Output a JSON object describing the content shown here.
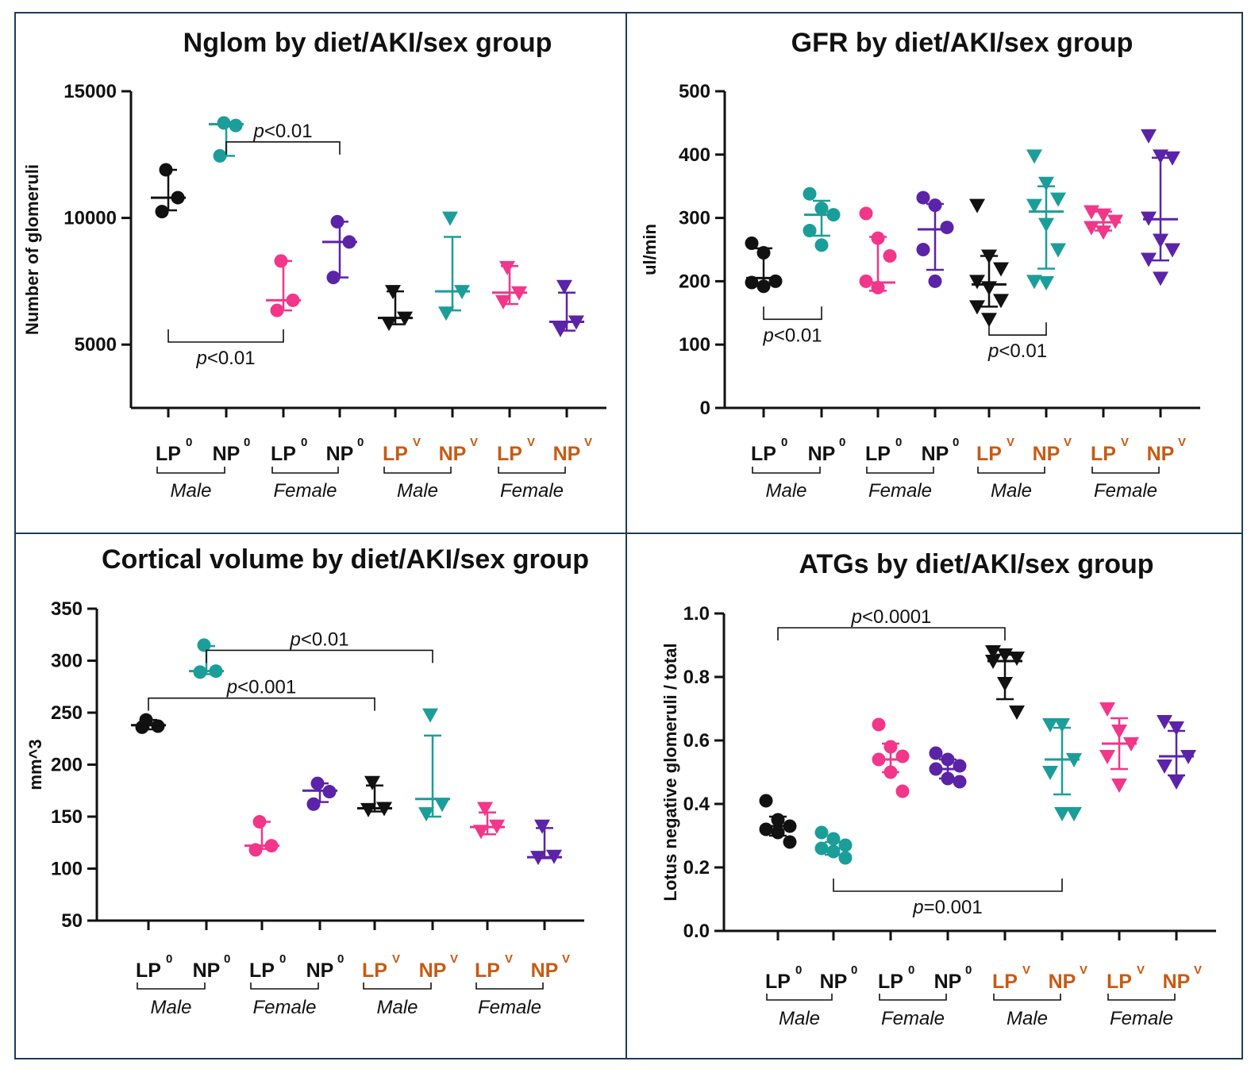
{
  "colors": {
    "black": "#111111",
    "teal": "#1b9e9a",
    "pink": "#f2368a",
    "purple": "#5b23a8",
    "orange": "#c85a12",
    "border": "#1f3a5a"
  },
  "chart_data": [
    {
      "type": "scatter",
      "title": "Nglom by diet/AKI/sex group",
      "xlabel": "",
      "ylabel": "Number of glomeruli",
      "ylim": [
        2500,
        15000
      ],
      "yticks": [
        "5000",
        "10000",
        "15000"
      ],
      "group_labels": [
        {
          "text": "LP",
          "sup": "0"
        },
        {
          "text": "NP",
          "sup": "0"
        },
        {
          "text": "LP",
          "sup": "0"
        },
        {
          "text": "NP",
          "sup": "0"
        },
        {
          "text": "LP",
          "sup": "V"
        },
        {
          "text": "NP",
          "sup": "V"
        },
        {
          "text": "LP",
          "sup": "V"
        },
        {
          "text": "NP",
          "sup": "V"
        }
      ],
      "sex_labels": [
        "Male",
        "Female",
        "Male",
        "Female"
      ],
      "groups": [
        {
          "marker": "circle",
          "color": "black",
          "mean": 10800,
          "err": [
            10300,
            11900
          ],
          "points": [
            11900,
            10800,
            10250
          ]
        },
        {
          "marker": "circle",
          "color": "teal",
          "mean": 13700,
          "err": [
            12450,
            13750
          ],
          "points": [
            13750,
            13650,
            12450
          ]
        },
        {
          "marker": "circle",
          "color": "pink",
          "mean": 6750,
          "err": [
            6350,
            8300
          ],
          "points": [
            8300,
            6750,
            6350
          ]
        },
        {
          "marker": "circle",
          "color": "purple",
          "mean": 9050,
          "err": [
            7650,
            9850
          ],
          "points": [
            9850,
            9050,
            7650
          ]
        },
        {
          "marker": "triangle",
          "color": "black",
          "mean": 6050,
          "err": [
            5800,
            7100
          ],
          "points": [
            7100,
            6050,
            5850
          ]
        },
        {
          "marker": "triangle",
          "color": "teal",
          "mean": 7100,
          "err": [
            6350,
            9250
          ],
          "points": [
            10000,
            7100,
            6250
          ]
        },
        {
          "marker": "triangle",
          "color": "pink",
          "mean": 7050,
          "err": [
            6600,
            8100
          ],
          "points": [
            8050,
            7050,
            6700
          ]
        },
        {
          "marker": "triangle",
          "color": "purple",
          "mean": 5900,
          "err": [
            5550,
            7050
          ],
          "points": [
            7300,
            5900,
            5600
          ]
        }
      ],
      "annotations": [
        {
          "text": "p<0.01",
          "from": 1,
          "to": 3,
          "bracket_y": 13000,
          "side": "above"
        },
        {
          "text": "p<0.01",
          "from": 0,
          "to": 2,
          "bracket_y": 5100,
          "side": "below"
        }
      ]
    },
    {
      "type": "scatter",
      "title": "GFR by diet/AKI/sex group",
      "xlabel": "",
      "ylabel": "ul/min",
      "ylim": [
        0,
        500
      ],
      "yticks": [
        "0",
        "100",
        "200",
        "300",
        "400",
        "500"
      ],
      "group_labels": [
        {
          "text": "LP",
          "sup": "0"
        },
        {
          "text": "NP",
          "sup": "0"
        },
        {
          "text": "LP",
          "sup": "0"
        },
        {
          "text": "NP",
          "sup": "0"
        },
        {
          "text": "LP",
          "sup": "V"
        },
        {
          "text": "NP",
          "sup": "V"
        },
        {
          "text": "LP",
          "sup": "V"
        },
        {
          "text": "NP",
          "sup": "V"
        }
      ],
      "sex_labels": [
        "Male",
        "Female",
        "Male",
        "Female"
      ],
      "groups": [
        {
          "marker": "circle",
          "color": "black",
          "mean": 205,
          "err": [
            195,
            252
          ],
          "points": [
            260,
            245,
            200,
            198,
            192
          ]
        },
        {
          "marker": "circle",
          "color": "teal",
          "mean": 305,
          "err": [
            272,
            327
          ],
          "points": [
            338,
            315,
            305,
            280,
            257
          ]
        },
        {
          "marker": "circle",
          "color": "pink",
          "mean": 198,
          "err": [
            185,
            270
          ],
          "points": [
            307,
            268,
            240,
            200,
            190
          ]
        },
        {
          "marker": "circle",
          "color": "purple",
          "mean": 282,
          "err": [
            218,
            322
          ],
          "points": [
            332,
            320,
            285,
            250,
            200
          ]
        },
        {
          "marker": "triangle",
          "color": "black",
          "mean": 195,
          "err": [
            160,
            240
          ],
          "points": [
            320,
            240,
            220,
            200,
            190,
            170,
            160,
            140
          ]
        },
        {
          "marker": "triangle",
          "color": "teal",
          "mean": 310,
          "err": [
            220,
            350
          ],
          "points": [
            398,
            355,
            330,
            320,
            290,
            250,
            200,
            198
          ]
        },
        {
          "marker": "triangle",
          "color": "pink",
          "mean": 293,
          "err": [
            280,
            310
          ],
          "points": [
            310,
            305,
            295,
            285,
            278
          ]
        },
        {
          "marker": "triangle",
          "color": "purple",
          "mean": 298,
          "err": [
            233,
            395
          ],
          "points": [
            430,
            398,
            395,
            300,
            265,
            250,
            235,
            205
          ]
        }
      ],
      "annotations": [
        {
          "text": "p<0.01",
          "from": 0,
          "to": 1,
          "bracket_y": 140,
          "side": "below"
        },
        {
          "text": "p<0.01",
          "from": 4,
          "to": 5,
          "bracket_y": 115,
          "side": "below"
        }
      ]
    },
    {
      "type": "scatter",
      "title": "Cortical volume by diet/AKI/sex group",
      "xlabel": "",
      "ylabel": "mm^3",
      "ylim": [
        50,
        350
      ],
      "yticks": [
        "50",
        "100",
        "150",
        "200",
        "250",
        "300",
        "350"
      ],
      "group_labels": [
        {
          "text": "LP",
          "sup": "0"
        },
        {
          "text": "NP",
          "sup": "0"
        },
        {
          "text": "LP",
          "sup": "0"
        },
        {
          "text": "NP",
          "sup": "0"
        },
        {
          "text": "LP",
          "sup": "V"
        },
        {
          "text": "NP",
          "sup": "V"
        },
        {
          "text": "LP",
          "sup": "V"
        },
        {
          "text": "NP",
          "sup": "V"
        }
      ],
      "sex_labels": [
        "Male",
        "Female",
        "Male",
        "Female"
      ],
      "groups": [
        {
          "marker": "circle",
          "color": "black",
          "mean": 238,
          "err": [
            234,
            243
          ],
          "points": [
            243,
            237,
            236
          ]
        },
        {
          "marker": "circle",
          "color": "teal",
          "mean": 290,
          "err": [
            287,
            314
          ],
          "points": [
            315,
            290,
            289
          ]
        },
        {
          "marker": "circle",
          "color": "pink",
          "mean": 122,
          "err": [
            119,
            145
          ],
          "points": [
            145,
            122,
            118
          ]
        },
        {
          "marker": "circle",
          "color": "purple",
          "mean": 175,
          "err": [
            164,
            182
          ],
          "points": [
            182,
            174,
            162
          ]
        },
        {
          "marker": "triangle",
          "color": "black",
          "mean": 158,
          "err": [
            155,
            180
          ],
          "points": [
            183,
            158,
            157
          ]
        },
        {
          "marker": "triangle",
          "color": "teal",
          "mean": 167,
          "err": [
            150,
            228
          ],
          "points": [
            248,
            162,
            153
          ]
        },
        {
          "marker": "triangle",
          "color": "pink",
          "mean": 140,
          "err": [
            133,
            154
          ],
          "points": [
            158,
            141,
            136
          ]
        },
        {
          "marker": "triangle",
          "color": "purple",
          "mean": 111,
          "err": [
            110,
            139
          ],
          "points": [
            141,
            112,
            111
          ]
        }
      ],
      "annotations": [
        {
          "text": "p<0.01",
          "from": 1,
          "to": 5,
          "bracket_y": 310,
          "side": "above"
        },
        {
          "text": "p<0.001",
          "from": 0,
          "to": 4,
          "bracket_y": 264,
          "side": "above"
        }
      ]
    },
    {
      "type": "scatter",
      "title": "ATGs by diet/AKI/sex group",
      "xlabel": "",
      "ylabel": "Lotus negative glomeruli / total",
      "ylim": [
        0.0,
        1.0
      ],
      "yticks": [
        "0.0",
        "0.2",
        "0.4",
        "0.6",
        "0.8",
        "1.0"
      ],
      "group_labels": [
        {
          "text": "LP",
          "sup": "0"
        },
        {
          "text": "NP",
          "sup": "0"
        },
        {
          "text": "LP",
          "sup": "0"
        },
        {
          "text": "NP",
          "sup": "0"
        },
        {
          "text": "LP",
          "sup": "V"
        },
        {
          "text": "NP",
          "sup": "V"
        },
        {
          "text": "LP",
          "sup": "V"
        },
        {
          "text": "NP",
          "sup": "V"
        }
      ],
      "sex_labels": [
        "Male",
        "Female",
        "Male",
        "Female"
      ],
      "groups": [
        {
          "marker": "circle",
          "color": "black",
          "mean": 0.33,
          "err": [
            0.3,
            0.36
          ],
          "points": [
            0.41,
            0.35,
            0.33,
            0.32,
            0.31,
            0.28
          ]
        },
        {
          "marker": "circle",
          "color": "teal",
          "mean": 0.26,
          "err": [
            0.24,
            0.28
          ],
          "points": [
            0.31,
            0.29,
            0.27,
            0.26,
            0.25,
            0.23
          ]
        },
        {
          "marker": "circle",
          "color": "pink",
          "mean": 0.54,
          "err": [
            0.5,
            0.59
          ],
          "points": [
            0.65,
            0.58,
            0.55,
            0.54,
            0.5,
            0.44
          ]
        },
        {
          "marker": "circle",
          "color": "purple",
          "mean": 0.51,
          "err": [
            0.48,
            0.54
          ],
          "points": [
            0.56,
            0.54,
            0.52,
            0.51,
            0.48,
            0.47
          ]
        },
        {
          "marker": "triangle",
          "color": "black",
          "mean": 0.85,
          "err": [
            0.73,
            0.87
          ],
          "points": [
            0.88,
            0.87,
            0.86,
            0.85,
            0.78,
            0.69
          ]
        },
        {
          "marker": "triangle",
          "color": "teal",
          "mean": 0.54,
          "err": [
            0.43,
            0.64
          ],
          "points": [
            0.65,
            0.65,
            0.54,
            0.5,
            0.37,
            0.37
          ]
        },
        {
          "marker": "triangle",
          "color": "pink",
          "mean": 0.59,
          "err": [
            0.51,
            0.67
          ],
          "points": [
            0.7,
            0.63,
            0.59,
            0.55,
            0.46
          ]
        },
        {
          "marker": "triangle",
          "color": "purple",
          "mean": 0.55,
          "err": [
            0.49,
            0.63
          ],
          "points": [
            0.66,
            0.64,
            0.55,
            0.52,
            0.47
          ]
        }
      ],
      "annotations": [
        {
          "text": "p<0.0001",
          "from": 0,
          "to": 4,
          "bracket_y": 0.955,
          "side": "above"
        },
        {
          "text": "p=0.001",
          "from": 1,
          "to": 5,
          "bracket_y": 0.125,
          "side": "below"
        }
      ]
    }
  ]
}
